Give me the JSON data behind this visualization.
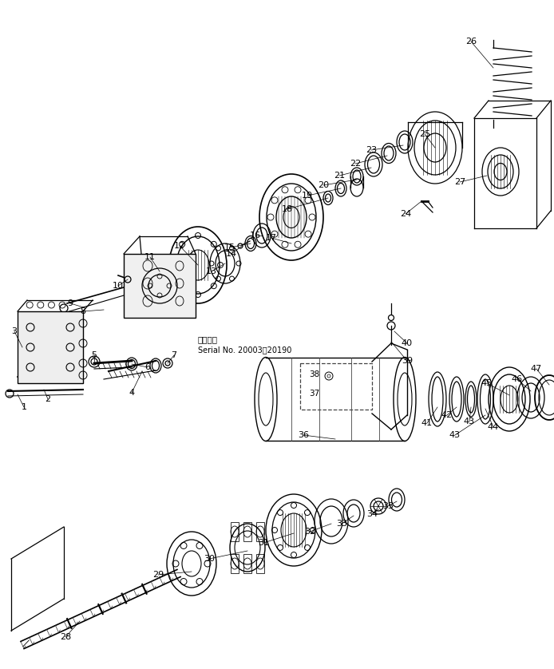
{
  "bg_color": "#ffffff",
  "line_color": "#000000",
  "fig_width": 6.94,
  "fig_height": 8.38,
  "dpi": 100,
  "serial_text_line1": "適用号機",
  "serial_text_line2": "Serial No. 20003～20190"
}
